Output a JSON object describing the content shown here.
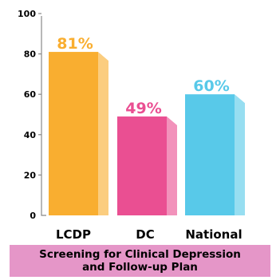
{
  "colors": {
    "lcdp": "#f9ae30",
    "dc": "#ea4f92",
    "national": "#58c9e9",
    "caption_bg": "#e596c8",
    "axis": "#888888"
  },
  "caption": {
    "line1": "Screening for Clinical Depression",
    "line2": "and Follow-up Plan"
  },
  "chart_data": {
    "type": "bar",
    "categories": [
      "LCDP",
      "DC",
      "National"
    ],
    "values": [
      81,
      49,
      60
    ],
    "value_labels": [
      "81%",
      "49%",
      "60%"
    ],
    "yticks": [
      0,
      20,
      40,
      60,
      80,
      100
    ],
    "ylim": [
      0,
      100
    ],
    "grid": false,
    "title": "Screening for Clinical Depression and Follow-up Plan",
    "bar_colors": [
      "#f9ae30",
      "#ea4f92",
      "#58c9e9"
    ]
  }
}
